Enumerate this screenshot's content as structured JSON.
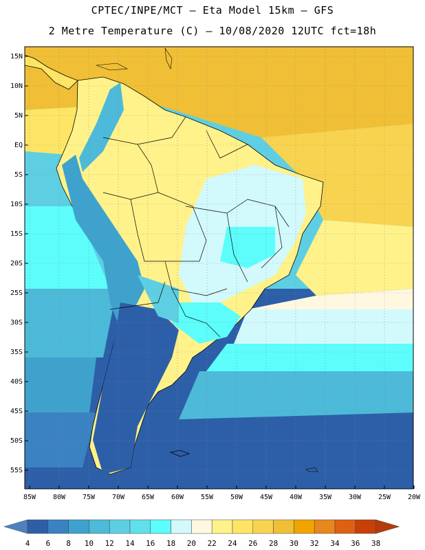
{
  "title_line1": "CPTEC/INPE/MCT –  Eta Model 15km – GFS",
  "title_line2": "2 Metre Temperature (C) – 10/08/2020 12UTC fct=18h",
  "lat_labels": [
    "15N",
    "10N",
    "5N",
    "EQ",
    "5S",
    "10S",
    "15S",
    "20S",
    "25S",
    "30S",
    "35S",
    "40S",
    "45S",
    "50S",
    "55S"
  ],
  "lon_labels": [
    "85W",
    "80W",
    "75W",
    "70W",
    "65W",
    "60W",
    "55W",
    "50W",
    "45W",
    "40W",
    "35W",
    "30W",
    "25W",
    "20W"
  ],
  "colorbar": {
    "labels": [
      "4",
      "6",
      "8",
      "10",
      "12",
      "14",
      "16",
      "18",
      "20",
      "22",
      "24",
      "26",
      "28",
      "30",
      "32",
      "34",
      "36",
      "38"
    ],
    "colors": [
      "#4e82bf",
      "#2d5fa8",
      "#3a82c2",
      "#3ea2cd",
      "#4cbad8",
      "#5ecfe2",
      "#5fe0ea",
      "#5cfdfb",
      "#d2f9fc",
      "#fff8e1",
      "#fff28a",
      "#fee565",
      "#f8d350",
      "#f0bf35",
      "#f0a500",
      "#e7871c",
      "#dd6013",
      "#c7400a",
      "#b63b0a"
    ]
  },
  "map": {
    "fields": {
      "ocean_north": "#f8d350",
      "ocean_north_hot": "#f0bf35",
      "ocean_mid": "#fff28a",
      "ocean_pale": "#fff8e1",
      "pacific": "#5ecfe2",
      "cold": "#2d5fa8",
      "cool": "#3ea2cd",
      "cyan": "#5cfdfb",
      "light": "#d2f9fc",
      "land_warm": "#fff28a"
    }
  }
}
